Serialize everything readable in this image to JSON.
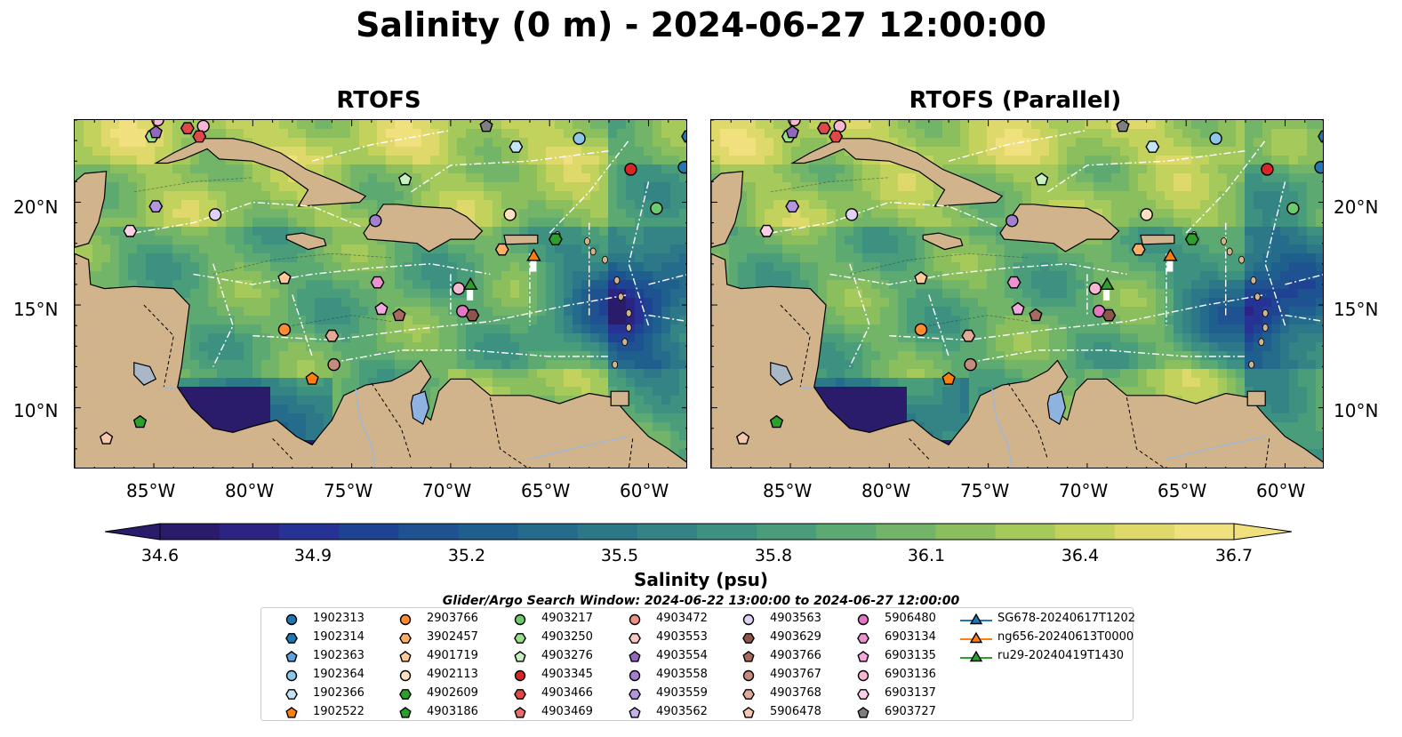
{
  "title": "Salinity (0 m) - 2024-06-27 12:00:00",
  "panels": [
    {
      "title": "RTOFS"
    },
    {
      "title": "RTOFS (Parallel)"
    }
  ],
  "axes": {
    "lon_labels": [
      "85°W",
      "80°W",
      "75°W",
      "70°W",
      "65°W",
      "60°W"
    ],
    "lat_labels": [
      "20°N",
      "15°N",
      "10°N"
    ],
    "lon_range": [
      -89,
      -58
    ],
    "lat_range": [
      7,
      24
    ]
  },
  "colorbar": {
    "label": "Salinity (psu)",
    "ticks": [
      "34.6",
      "34.9",
      "35.2",
      "35.5",
      "35.8",
      "36.1",
      "36.4",
      "36.7"
    ],
    "vmin": 34.6,
    "vmax": 36.7,
    "colormap": "haline",
    "extend": "both"
  },
  "legend": {
    "title": "Glider/Argo Search Window: 2024-06-22 13:00:00 to 2024-06-27 12:00:00",
    "items": [
      {
        "label": "1902313",
        "color": "#1f77b4",
        "marker": "circle"
      },
      {
        "label": "1902314",
        "color": "#1f77b4",
        "marker": "hexagon"
      },
      {
        "label": "1902363",
        "color": "#5fa2dd",
        "marker": "pentagon"
      },
      {
        "label": "1902364",
        "color": "#8ec6ea",
        "marker": "circle"
      },
      {
        "label": "1902366",
        "color": "#c4e4f6",
        "marker": "hexagon"
      },
      {
        "label": "1902522",
        "color": "#ff7f0e",
        "marker": "pentagon"
      },
      {
        "label": "2903766",
        "color": "#ff8c2e",
        "marker": "circle"
      },
      {
        "label": "3902457",
        "color": "#ffae66",
        "marker": "hexagon"
      },
      {
        "label": "4901719",
        "color": "#ffc99a",
        "marker": "pentagon"
      },
      {
        "label": "4902113",
        "color": "#ffe0c0",
        "marker": "circle"
      },
      {
        "label": "4902609",
        "color": "#2ca02c",
        "marker": "hexagon"
      },
      {
        "label": "4903186",
        "color": "#2ca02c",
        "marker": "pentagon"
      },
      {
        "label": "4903217",
        "color": "#6ccc6c",
        "marker": "circle"
      },
      {
        "label": "4903250",
        "color": "#98df8a",
        "marker": "hexagon"
      },
      {
        "label": "4903276",
        "color": "#c6f0c0",
        "marker": "pentagon"
      },
      {
        "label": "4903345",
        "color": "#d62728",
        "marker": "circle"
      },
      {
        "label": "4903466",
        "color": "#e04848",
        "marker": "hexagon"
      },
      {
        "label": "4903469",
        "color": "#ec6b6b",
        "marker": "pentagon"
      },
      {
        "label": "4903472",
        "color": "#f0908a",
        "marker": "circle"
      },
      {
        "label": "4903553",
        "color": "#fac8c4",
        "marker": "hexagon"
      },
      {
        "label": "4903554",
        "color": "#9467bd",
        "marker": "pentagon"
      },
      {
        "label": "4903558",
        "color": "#a47fd0",
        "marker": "circle"
      },
      {
        "label": "4903559",
        "color": "#b496de",
        "marker": "hexagon"
      },
      {
        "label": "4903562",
        "color": "#c5b0e8",
        "marker": "pentagon"
      },
      {
        "label": "4903563",
        "color": "#e0d2f4",
        "marker": "circle"
      },
      {
        "label": "4903629",
        "color": "#8c564b",
        "marker": "hexagon"
      },
      {
        "label": "4903766",
        "color": "#a66b5e",
        "marker": "pentagon"
      },
      {
        "label": "4903767",
        "color": "#c48c7e",
        "marker": "circle"
      },
      {
        "label": "4903768",
        "color": "#e0aa96",
        "marker": "hexagon"
      },
      {
        "label": "5906478",
        "color": "#f6c8b0",
        "marker": "pentagon"
      },
      {
        "label": "5906480",
        "color": "#e377c2",
        "marker": "circle"
      },
      {
        "label": "6903134",
        "color": "#ec92d2",
        "marker": "hexagon"
      },
      {
        "label": "6903135",
        "color": "#f2aade",
        "marker": "pentagon"
      },
      {
        "label": "6903136",
        "color": "#f7b6d2",
        "marker": "circle"
      },
      {
        "label": "6903137",
        "color": "#fbd0e6",
        "marker": "hexagon"
      },
      {
        "label": "6903727",
        "color": "#7f7f7f",
        "marker": "pentagon"
      },
      {
        "label": "SG678-20240617T1202",
        "color": "#1f77b4",
        "marker": "triangle"
      },
      {
        "label": "ng656-20240613T0000",
        "color": "#ff7f0e",
        "marker": "triangle"
      },
      {
        "label": "ru29-20240419T1430",
        "color": "#2ca02c",
        "marker": "triangle"
      }
    ]
  },
  "map_markers": [
    {
      "id": "6903136",
      "lon": -84.8,
      "lat": 24.0
    },
    {
      "id": "4903466",
      "lon": -83.3,
      "lat": 23.6
    },
    {
      "id": "6903136",
      "lon": -82.5,
      "lat": 23.7
    },
    {
      "id": "4903250",
      "lon": -85.1,
      "lat": 23.2
    },
    {
      "id": "4903554",
      "lon": -84.9,
      "lat": 23.4
    },
    {
      "id": "4903466",
      "lon": -82.7,
      "lat": 23.2
    },
    {
      "id": "6903727",
      "lon": -68.2,
      "lat": 23.7
    },
    {
      "id": "1902366",
      "lon": -66.7,
      "lat": 22.7
    },
    {
      "id": "1902364",
      "lon": -63.5,
      "lat": 23.1
    },
    {
      "id": "1902314",
      "lon": -58.0,
      "lat": 23.2
    },
    {
      "id": "4903345",
      "lon": -60.9,
      "lat": 21.6
    },
    {
      "id": "1902313",
      "lon": -58.2,
      "lat": 21.7
    },
    {
      "id": "4903276",
      "lon": -72.3,
      "lat": 21.1
    },
    {
      "id": "4903559",
      "lon": -84.9,
      "lat": 19.8
    },
    {
      "id": "4903563",
      "lon": -81.9,
      "lat": 19.4
    },
    {
      "id": "4903558",
      "lon": -73.8,
      "lat": 19.1
    },
    {
      "id": "4902113",
      "lon": -67.0,
      "lat": 19.4
    },
    {
      "id": "4903217",
      "lon": -59.6,
      "lat": 19.7
    },
    {
      "id": "6903137",
      "lon": -86.2,
      "lat": 18.6
    },
    {
      "id": "4902609",
      "lon": -64.7,
      "lat": 18.2
    },
    {
      "id": "3902457",
      "lon": -67.4,
      "lat": 17.7
    },
    {
      "id": "ng656-20240613T0000",
      "lon": -65.8,
      "lat": 17.4
    },
    {
      "id": "4901719",
      "lon": -78.4,
      "lat": 16.3
    },
    {
      "id": "6903134",
      "lon": -73.7,
      "lat": 16.1
    },
    {
      "id": "6903136",
      "lon": -69.6,
      "lat": 15.8
    },
    {
      "id": "ru29-20240419T1430",
      "lon": -69.0,
      "lat": 16.0
    },
    {
      "id": "6903135",
      "lon": -73.5,
      "lat": 14.8
    },
    {
      "id": "4903766",
      "lon": -72.6,
      "lat": 14.5
    },
    {
      "id": "5906480",
      "lon": -69.4,
      "lat": 14.7
    },
    {
      "id": "4903629",
      "lon": -68.9,
      "lat": 14.5
    },
    {
      "id": "2903766",
      "lon": -78.4,
      "lat": 13.8
    },
    {
      "id": "4903768",
      "lon": -76.0,
      "lat": 13.5
    },
    {
      "id": "4903767",
      "lon": -75.9,
      "lat": 12.1
    },
    {
      "id": "1902522",
      "lon": -77.0,
      "lat": 11.4
    },
    {
      "id": "4903186",
      "lon": -85.7,
      "lat": 9.3
    },
    {
      "id": "5906478",
      "lon": -87.4,
      "lat": 8.5
    }
  ]
}
